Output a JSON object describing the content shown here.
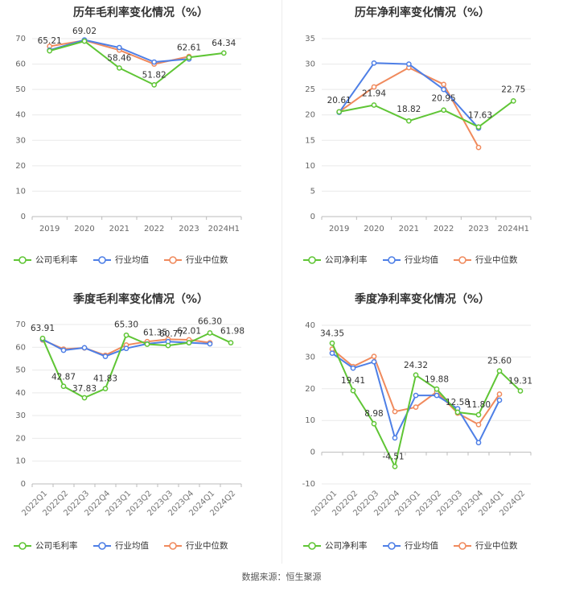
{
  "source": "数据来源：恒生聚源",
  "chart_data": [
    {
      "type": "line",
      "title": "历年毛利率变化情况（%）",
      "categories": [
        "2019",
        "2020",
        "2021",
        "2022",
        "2023",
        "2024H1"
      ],
      "ylim": [
        0,
        70
      ],
      "yticks": [
        0,
        10,
        20,
        30,
        40,
        50,
        60,
        70
      ],
      "rotate_xticks": false,
      "series": [
        {
          "name": "公司毛利率",
          "color": "#5fc535",
          "values": [
            65.21,
            69.02,
            58.46,
            51.82,
            62.61,
            64.34
          ],
          "labels": [
            "65.21",
            "69.02",
            "58.46",
            "51.82",
            "62.61",
            "64.34"
          ]
        },
        {
          "name": "行业均值",
          "color": "#4e7fe6",
          "values": [
            65.5,
            69.5,
            66.5,
            60.8,
            62.0,
            null
          ]
        },
        {
          "name": "行业中位数",
          "color": "#f08a5d",
          "values": [
            67.0,
            69.3,
            65.5,
            60.0,
            63.0,
            null
          ]
        }
      ]
    },
    {
      "type": "line",
      "title": "历年净利率变化情况（%）",
      "categories": [
        "2019",
        "2020",
        "2021",
        "2022",
        "2023",
        "2024H1"
      ],
      "ylim": [
        0,
        35
      ],
      "yticks": [
        0,
        5,
        10,
        15,
        20,
        25,
        30,
        35
      ],
      "rotate_xticks": false,
      "series": [
        {
          "name": "公司净利率",
          "color": "#5fc535",
          "values": [
            20.61,
            21.94,
            18.82,
            20.95,
            17.63,
            22.75
          ],
          "labels": [
            "20.61",
            "21.94",
            "18.82",
            "20.95",
            "17.63",
            "22.75"
          ]
        },
        {
          "name": "行业均值",
          "color": "#4e7fe6",
          "values": [
            20.5,
            30.2,
            30.0,
            25.0,
            17.4,
            null
          ]
        },
        {
          "name": "行业中位数",
          "color": "#f08a5d",
          "values": [
            20.6,
            25.5,
            29.3,
            26.0,
            13.6,
            null
          ]
        }
      ]
    },
    {
      "type": "line",
      "title": "季度毛利率变化情况（%）",
      "categories": [
        "2022Q1",
        "2022Q2",
        "2022Q3",
        "2022Q4",
        "2023Q1",
        "2023Q2",
        "2023Q3",
        "2023Q4",
        "2024Q1",
        "2024Q2"
      ],
      "ylim": [
        0,
        70
      ],
      "yticks": [
        0,
        10,
        20,
        30,
        40,
        50,
        60,
        70
      ],
      "rotate_xticks": true,
      "series": [
        {
          "name": "公司毛利率",
          "color": "#5fc535",
          "values": [
            63.91,
            42.87,
            37.83,
            41.83,
            65.3,
            61.35,
            60.77,
            62.01,
            66.3,
            61.98
          ],
          "labels": [
            "63.91",
            "42.87",
            "37.83",
            "41.83",
            "65.30",
            "61.35",
            "60.77",
            "62.01",
            "66.30",
            "61.98"
          ]
        },
        {
          "name": "行业均值",
          "color": "#4e7fe6",
          "values": [
            63.5,
            58.7,
            59.8,
            56.0,
            59.5,
            61.5,
            62.5,
            62.0,
            61.5,
            null
          ]
        },
        {
          "name": "行业中位数",
          "color": "#f08a5d",
          "values": [
            63.2,
            59.2,
            59.7,
            56.5,
            61.0,
            62.5,
            63.5,
            63.3,
            62.0,
            null
          ]
        }
      ]
    },
    {
      "type": "line",
      "title": "季度净利率变化情况（%）",
      "categories": [
        "2022Q1",
        "2022Q2",
        "2022Q3",
        "2022Q4",
        "2023Q1",
        "2023Q2",
        "2023Q3",
        "2023Q4",
        "2024Q1",
        "2024Q2"
      ],
      "ylim": [
        -10,
        40
      ],
      "yticks": [
        -10,
        0,
        10,
        20,
        30,
        40
      ],
      "rotate_xticks": true,
      "series": [
        {
          "name": "公司净利率",
          "color": "#5fc535",
          "values": [
            34.35,
            19.41,
            8.98,
            -4.51,
            24.32,
            19.88,
            12.58,
            11.8,
            25.6,
            19.31
          ],
          "labels": [
            "34.35",
            "19.41",
            "8.98",
            "-4.51",
            "24.32",
            "19.88",
            "12.58",
            "11.80",
            "25.60",
            "19.31"
          ]
        },
        {
          "name": "行业均值",
          "color": "#4e7fe6",
          "values": [
            31.2,
            26.5,
            28.5,
            4.5,
            17.9,
            17.9,
            13.7,
            3.0,
            16.4,
            null
          ]
        },
        {
          "name": "行业中位数",
          "color": "#f08a5d",
          "values": [
            32.5,
            27.0,
            30.2,
            12.8,
            14.2,
            19.0,
            12.3,
            8.7,
            18.3,
            null
          ]
        }
      ]
    }
  ]
}
